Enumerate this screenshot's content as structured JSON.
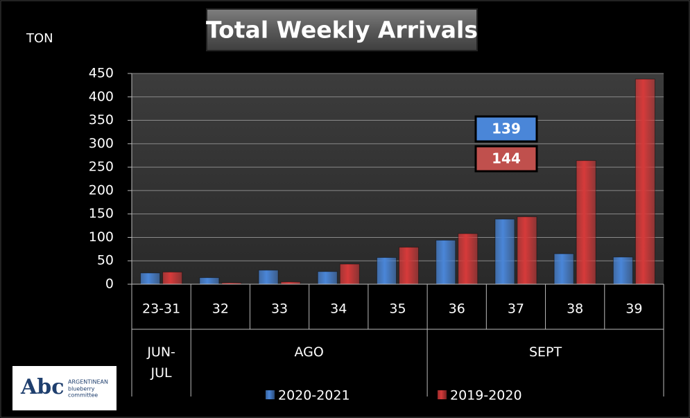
{
  "chart_data": {
    "type": "bar",
    "title": "Total Weekly Arrivals",
    "y_axis_label": "TON",
    "categories": [
      "23-31",
      "32",
      "33",
      "34",
      "35",
      "36",
      "37",
      "38",
      "39"
    ],
    "groups": [
      {
        "label": "JUN-JUL",
        "span": [
          0,
          0
        ]
      },
      {
        "label": "AGO",
        "span": [
          1,
          4
        ]
      },
      {
        "label": "SEPT",
        "span": [
          5,
          8
        ]
      }
    ],
    "series": [
      {
        "name": "2020-2021",
        "color": "#4a86d8",
        "values": [
          24,
          14,
          30,
          27,
          57,
          94,
          139,
          65,
          58
        ]
      },
      {
        "name": "2019-2020",
        "color": "#d63a3a",
        "values": [
          26,
          3,
          5,
          43,
          79,
          108,
          144,
          264,
          438
        ]
      }
    ],
    "annotations": [
      {
        "text": "139",
        "color": "#4a86d8"
      },
      {
        "text": "144",
        "color": "#c0504d"
      }
    ],
    "ylim": [
      0,
      450
    ],
    "yticks": [
      0,
      50,
      100,
      150,
      200,
      250,
      300,
      350,
      400,
      450
    ],
    "grid": true,
    "legend": "bottom",
    "logo": {
      "mark": "Abc",
      "lines": [
        "ARGENTINEAN",
        "blueberry",
        "committee"
      ]
    }
  }
}
